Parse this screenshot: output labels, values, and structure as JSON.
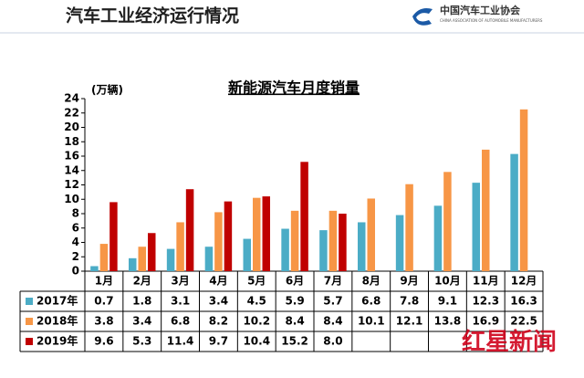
{
  "header": {
    "title": "汽车工业经济运行情况",
    "org": "中国汽车工业协会",
    "org_en": "CHINA ASSOCIATION OF AUTOMOBILE MANUFACTURERS"
  },
  "chart_data": {
    "type": "bar",
    "title": "新能源汽车月度销量",
    "y_label": "(万辆)",
    "categories": [
      "1月",
      "2月",
      "3月",
      "4月",
      "5月",
      "6月",
      "7月",
      "8月",
      "9月",
      "10月",
      "11月",
      "12月"
    ],
    "series": [
      {
        "name": "2017年",
        "color": "#4bacc6",
        "values": [
          0.7,
          1.8,
          3.1,
          3.4,
          4.5,
          5.9,
          5.7,
          6.8,
          7.8,
          9.1,
          12.3,
          16.3
        ],
        "value_labels": [
          "0.7",
          "1.8",
          "3.1",
          "3.4",
          "4.5",
          "5.9",
          "5.7",
          "6.8",
          "7.8",
          "9.1",
          "12.3",
          "16.3"
        ]
      },
      {
        "name": "2018年",
        "color": "#f79646",
        "values": [
          3.8,
          3.4,
          6.8,
          8.2,
          10.2,
          8.4,
          8.4,
          10.1,
          12.1,
          13.8,
          16.9,
          22.5
        ],
        "value_labels": [
          "3.8",
          "3.4",
          "6.8",
          "8.2",
          "10.2",
          "8.4",
          "8.4",
          "10.1",
          "12.1",
          "13.8",
          "16.9",
          "22.5"
        ]
      },
      {
        "name": "2019年",
        "color": "#c00000",
        "values": [
          9.6,
          5.3,
          11.4,
          9.7,
          10.4,
          15.2,
          8.0,
          null,
          null,
          null,
          null,
          null
        ],
        "value_labels": [
          "9.6",
          "5.3",
          "11.4",
          "9.7",
          "10.4",
          "15.2",
          "8.0",
          null,
          null,
          null,
          null,
          null
        ]
      }
    ],
    "ylim": [
      0,
      24
    ],
    "yticks": [
      0,
      2,
      4,
      6,
      8,
      10,
      12,
      14,
      16,
      18,
      20,
      22,
      24
    ]
  },
  "watermark": "红星新闻"
}
